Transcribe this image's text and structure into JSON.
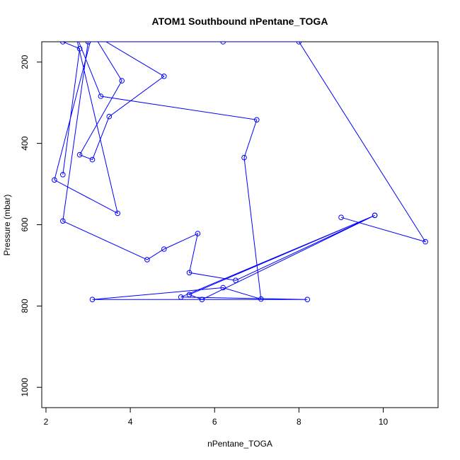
{
  "chart_data": {
    "type": "line",
    "title": "ATOM1 Southbound nPentane_TOGA",
    "xlabel": "nPentane_TOGA",
    "ylabel": "Pressure (mbar)",
    "xlim": [
      1.9,
      11.3
    ],
    "ylim": [
      1050,
      150
    ],
    "y_reversed": true,
    "x_ticks": [
      2,
      4,
      6,
      8,
      10
    ],
    "y_ticks": [
      200,
      400,
      600,
      800,
      1000
    ],
    "grid": false,
    "legend": "none",
    "colors": {
      "series": "#0000ff",
      "frame": "#000000"
    },
    "series": [
      {
        "marker": "open-circle",
        "x": [
          2.4,
          2.8,
          2.4,
          3.1,
          3.8,
          2.8,
          3.1,
          3.5,
          4.8,
          3.1,
          2.2,
          3.7,
          2.7,
          3.3,
          7.0,
          6.7,
          7.1,
          6.2,
          3.1,
          8.2,
          5.2,
          9.8,
          5.4,
          5.7,
          9.8,
          6.5,
          5.4,
          5.6,
          4.8,
          4.4,
          2.4,
          3.0,
          3.0,
          6.2,
          8.0,
          11.0,
          9.0
        ],
        "y": [
          477,
          167,
          150,
          128,
          246,
          428,
          440,
          334,
          235,
          130,
          490,
          572,
          130,
          284,
          342,
          435,
          783,
          755,
          784,
          784,
          778,
          577,
          772,
          784,
          577,
          737,
          718,
          622,
          660,
          686,
          591,
          150,
          150,
          150,
          150,
          642,
          582
        ]
      }
    ]
  }
}
